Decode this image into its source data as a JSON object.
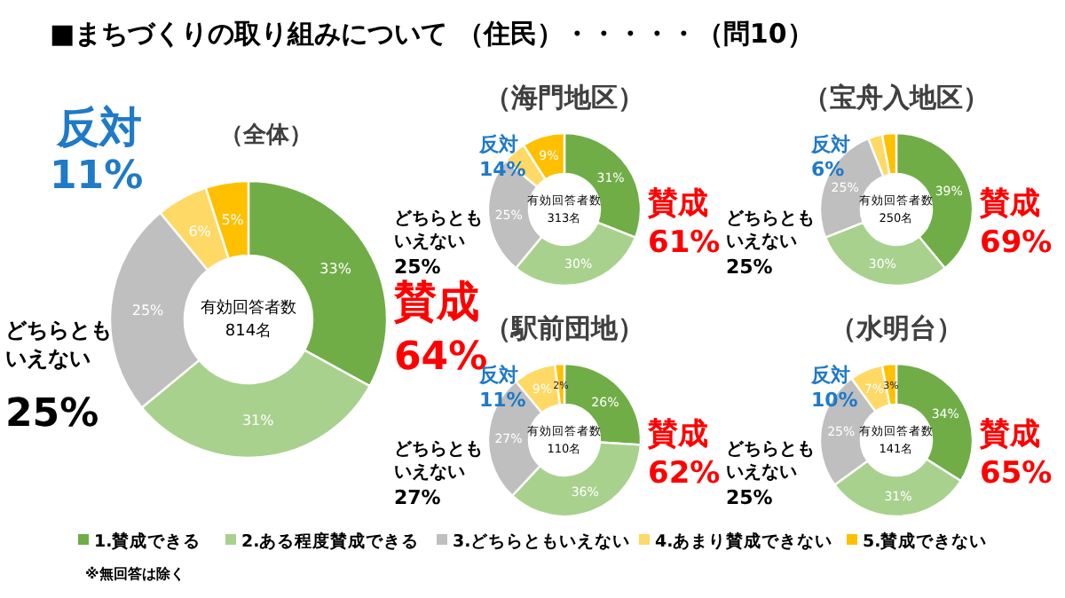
{
  "chart_data": [
    {
      "type": "donut",
      "title": "■まちづくりの取り組みについて （住民）・・・・・（問10）",
      "subtitle": "（全体）",
      "categories": [
        "1.賛成できる",
        "2.ある程度賛成できる",
        "3.どちらともいえない",
        "4.あまり賛成できない",
        "5.賛成できない"
      ],
      "values": [
        33,
        31,
        25,
        6,
        5
      ],
      "value_labels": [
        "33%",
        "31%",
        "25%",
        "6%",
        "5%"
      ],
      "colors": [
        "#70ad47",
        "#a9d18e",
        "#bfbfbf",
        "#ffd966",
        "#ffc000"
      ],
      "legend": "bottom",
      "annotations": [
        "有効回答者数",
        "814名",
        "賛成",
        "64%",
        "反対",
        "11%",
        "どちらとも",
        "いえない",
        "25%",
        "※無回答は除く"
      ]
    },
    {
      "type": "donut",
      "title": "（海門地区）",
      "categories": [
        null,
        null,
        null,
        null,
        null
      ],
      "values": [
        31,
        30,
        25,
        5,
        9
      ],
      "value_labels": [
        "31%",
        "30%",
        "25%",
        null,
        "9%"
      ],
      "colors": [
        "#70ad47",
        "#a9d18e",
        "#bfbfbf",
        "#ffd966",
        "#ffc000"
      ],
      "annotations": [
        "有効回答者数",
        "313名",
        "賛成",
        "61%",
        "反対",
        "14%",
        "どちらとも",
        "いえない",
        "25%"
      ]
    },
    {
      "type": "donut",
      "title": "（宝舟入地区）",
      "categories": [
        null,
        null,
        null,
        null,
        null
      ],
      "values": [
        39,
        30,
        25,
        3,
        3
      ],
      "value_labels": [
        "39%",
        "30%",
        "25%",
        null,
        null
      ],
      "colors": [
        "#70ad47",
        "#a9d18e",
        "#bfbfbf",
        "#ffd966",
        "#ffc000"
      ],
      "annotations": [
        "有効回答者数",
        "250名",
        "賛成",
        "69%",
        "反対",
        "6%",
        "どちらとも",
        "いえない",
        "25%"
      ]
    },
    {
      "type": "donut",
      "title": "（駅前団地）",
      "categories": [
        null,
        null,
        null,
        null,
        null
      ],
      "values": [
        26,
        36,
        27,
        9,
        2
      ],
      "value_labels": [
        "26%",
        "36%",
        "27%",
        "9%",
        "2%"
      ],
      "colors": [
        "#70ad47",
        "#a9d18e",
        "#bfbfbf",
        "#ffd966",
        "#ffc000"
      ],
      "annotations": [
        "有効回答者数",
        "110名",
        "賛成",
        "62%",
        "反対",
        "11%",
        "どちらとも",
        "いえない",
        "27%"
      ]
    },
    {
      "type": "donut",
      "title": "（水明台）",
      "categories": [
        null,
        null,
        null,
        null,
        null
      ],
      "values": [
        34,
        31,
        25,
        7,
        3
      ],
      "value_labels": [
        "34%",
        "31%",
        "25%",
        "7%",
        "3%"
      ],
      "colors": [
        "#70ad47",
        "#a9d18e",
        "#bfbfbf",
        "#ffd966",
        "#ffc000"
      ],
      "annotations": [
        "有効回答者数",
        "141名",
        "賛成",
        "65%",
        "反対",
        "10%",
        "どちらとも",
        "いえない",
        "25%"
      ]
    }
  ]
}
